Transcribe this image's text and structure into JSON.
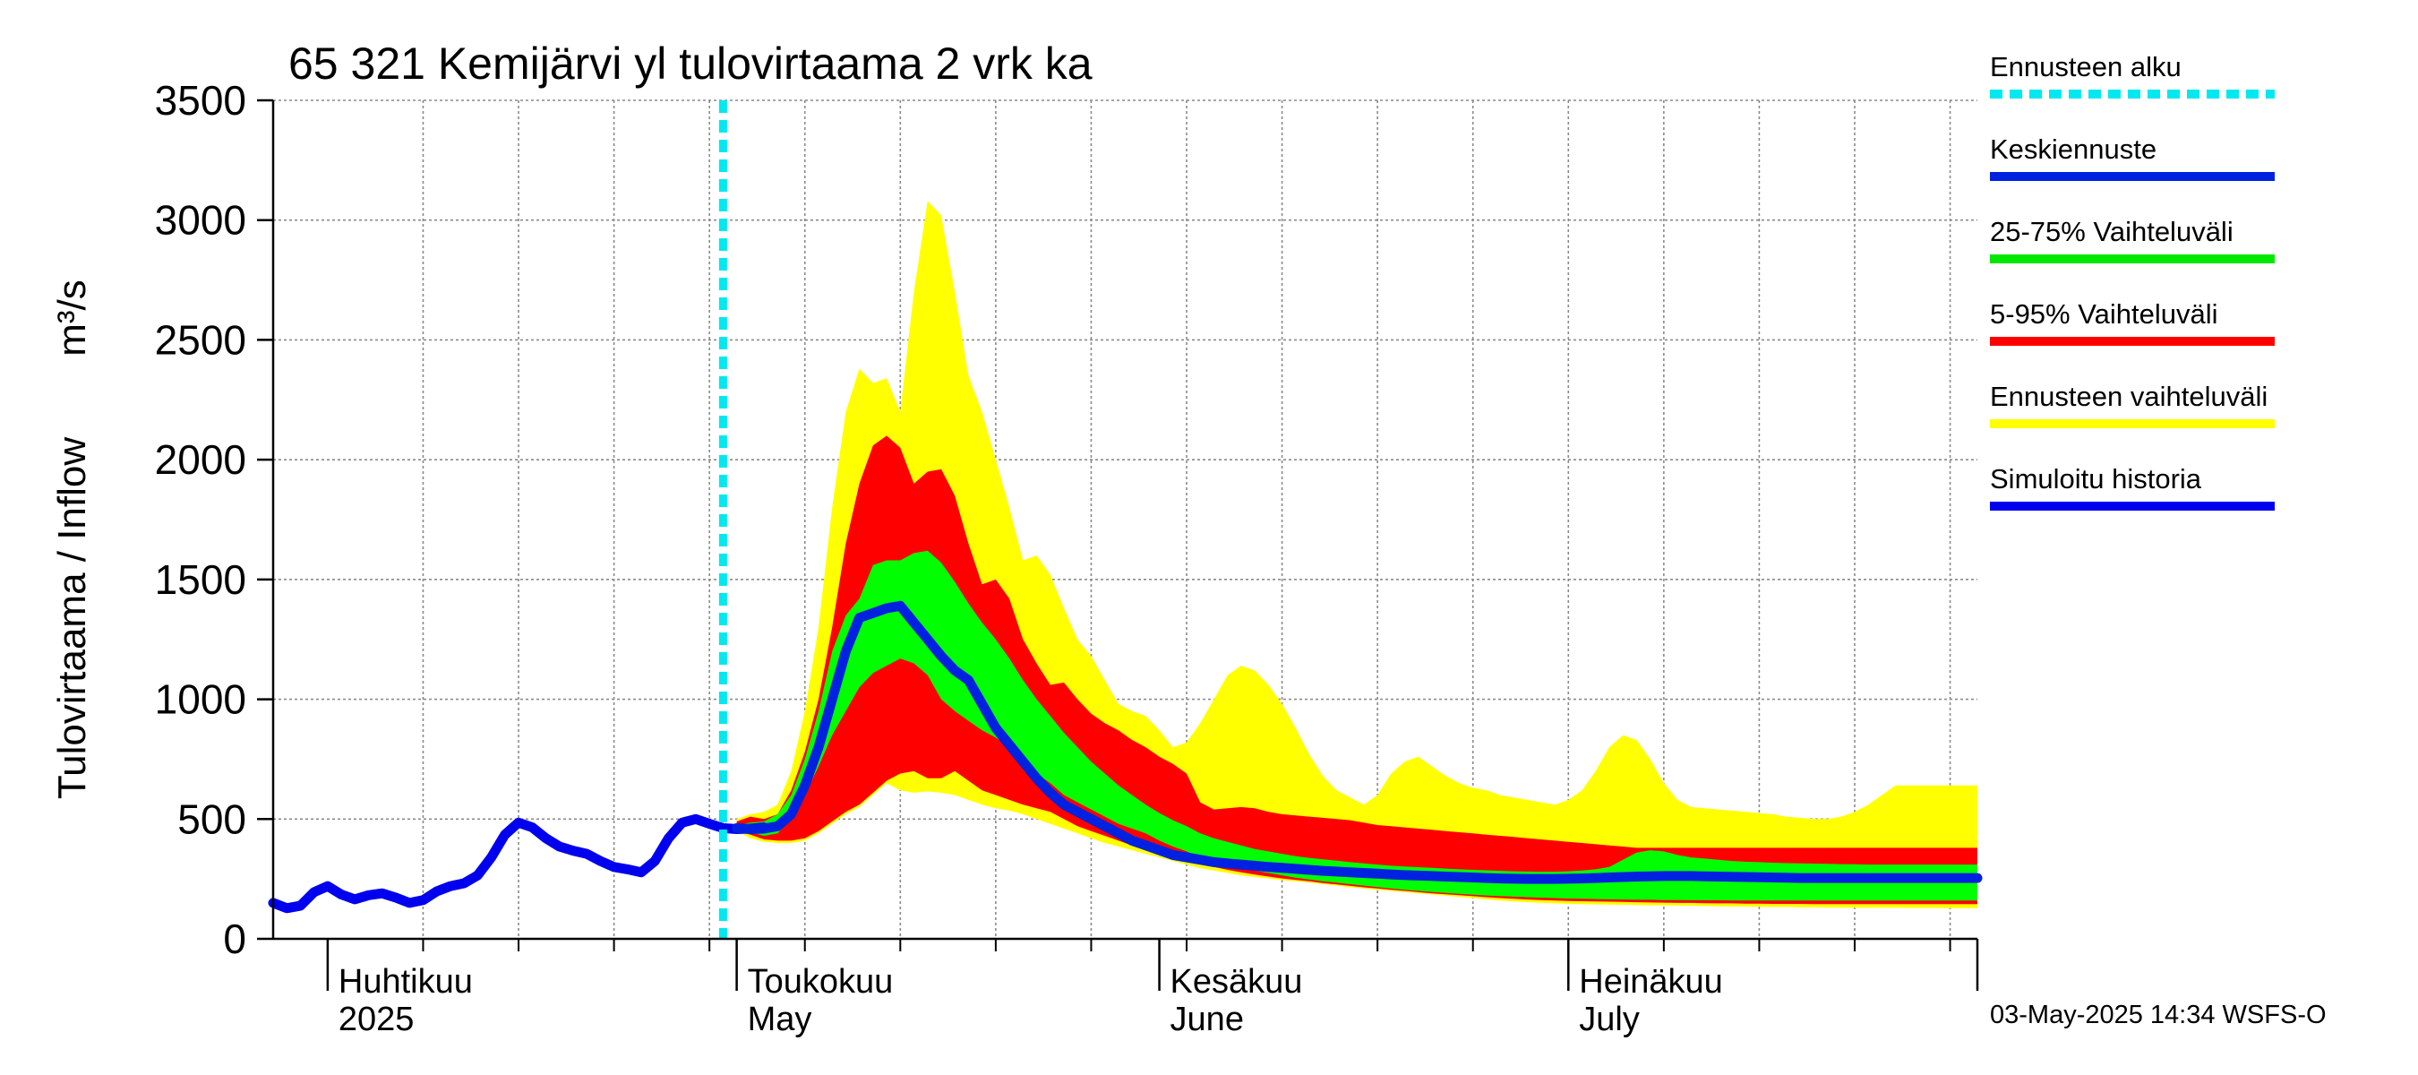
{
  "chart_data": {
    "type": "area",
    "title": "65 321 Kemijärvi yl tulovirtaama 2 vrk ka",
    "ylabel": "Tulovirtaama / Inflow",
    "ylabel_unit": "m³/s",
    "ylim": [
      0,
      3500
    ],
    "yticks": [
      0,
      500,
      1000,
      1500,
      2000,
      2500,
      3000,
      3500
    ],
    "xlim": [
      "2025-03-28",
      "2025-07-31"
    ],
    "grid": true,
    "month_labels": [
      {
        "fi": "Huhtikuu",
        "en": "2025",
        "date": "2025-04-01"
      },
      {
        "fi": "Toukokuu",
        "en": "May",
        "date": "2025-05-01"
      },
      {
        "fi": "Kesäkuu",
        "en": "June",
        "date": "2025-06-01"
      },
      {
        "fi": "Heinäkuu",
        "en": "July",
        "date": "2025-07-01"
      }
    ],
    "forecast_start": "2025-04-30",
    "history": {
      "name": "Simuloitu historia",
      "x": [
        0,
        1,
        2,
        3,
        4,
        5,
        6,
        7,
        8,
        9,
        10,
        11,
        12,
        13,
        14,
        15,
        16,
        17,
        18,
        19,
        20,
        21,
        22,
        23,
        24,
        25,
        26,
        27,
        28,
        29,
        30,
        31,
        32,
        33,
        34,
        35,
        36
      ],
      "values": [
        150,
        128,
        138,
        195,
        220,
        185,
        165,
        182,
        190,
        172,
        150,
        162,
        198,
        220,
        232,
        265,
        340,
        435,
        485,
        465,
        420,
        385,
        368,
        355,
        325,
        300,
        290,
        278,
        325,
        420,
        485,
        500,
        480,
        462,
        458,
        460,
        465
      ]
    },
    "forecast_x": [
      34,
      35,
      36,
      37,
      38,
      39,
      40,
      41,
      42,
      43,
      44,
      45,
      46,
      47,
      48,
      49,
      50,
      51,
      52,
      53,
      54,
      55,
      56,
      57,
      58,
      59,
      60,
      61,
      62,
      63,
      64,
      65,
      66,
      67,
      68,
      69,
      70,
      71,
      72,
      73,
      74,
      75,
      76,
      77,
      78,
      79,
      80,
      81,
      82,
      83,
      84,
      85,
      86,
      87,
      88,
      89,
      90,
      91,
      92,
      93,
      94,
      95,
      96,
      97,
      98,
      99,
      100,
      101,
      102,
      103,
      104,
      105,
      106,
      107,
      108,
      109,
      110,
      111,
      112,
      113,
      114,
      115,
      116,
      117,
      118,
      119,
      120,
      121,
      122,
      123,
      124,
      125
    ],
    "series": [
      {
        "name": "Ennusteen vaihteluväli",
        "color": "#ffff00",
        "lower": [
          450,
          420,
          405,
          400,
          400,
          410,
          440,
          480,
          520,
          550,
          600,
          650,
          620,
          610,
          615,
          610,
          600,
          580,
          560,
          545,
          535,
          520,
          500,
          480,
          460,
          440,
          420,
          400,
          385,
          370,
          355,
          340,
          325,
          310,
          295,
          285,
          275,
          265,
          258,
          252,
          245,
          240,
          235,
          228,
          222,
          215,
          210,
          205,
          200,
          195,
          190,
          185,
          180,
          175,
          170,
          165,
          160,
          156,
          153,
          150,
          148,
          146,
          145,
          144,
          143,
          142,
          141,
          140,
          140,
          139,
          138,
          137,
          136,
          135,
          135,
          134,
          133,
          133,
          132,
          132,
          131,
          131,
          130,
          130,
          130,
          130,
          129,
          129,
          129,
          128,
          128,
          128
        ],
        "upper": [
          500,
          520,
          530,
          560,
          700,
          950,
          1300,
          1800,
          2200,
          2380,
          2320,
          2340,
          2200,
          2700,
          3080,
          3020,
          2700,
          2350,
          2200,
          2000,
          1800,
          1580,
          1600,
          1520,
          1380,
          1250,
          1180,
          1080,
          980,
          950,
          930,
          870,
          800,
          820,
          900,
          1000,
          1100,
          1140,
          1120,
          1060,
          980,
          880,
          770,
          680,
          620,
          590,
          560,
          600,
          690,
          740,
          760,
          720,
          680,
          650,
          630,
          620,
          600,
          590,
          580,
          570,
          560,
          580,
          620,
          700,
          800,
          850,
          830,
          750,
          650,
          580,
          550,
          545,
          540,
          535,
          530,
          525,
          520,
          510,
          505,
          500,
          500,
          510,
          530,
          560,
          600,
          640,
          640,
          640,
          640,
          640,
          640,
          640
        ]
      },
      {
        "name": "5-95% Vaihteluväli",
        "color": "#ff0000",
        "lower": [
          450,
          435,
          415,
          410,
          410,
          420,
          450,
          490,
          530,
          560,
          610,
          660,
          690,
          700,
          670,
          670,
          700,
          660,
          620,
          600,
          580,
          560,
          545,
          530,
          500,
          470,
          450,
          430,
          410,
          390,
          375,
          360,
          345,
          330,
          315,
          300,
          288,
          278,
          268,
          260,
          252,
          246,
          240,
          233,
          227,
          221,
          215,
          210,
          205,
          200,
          195,
          190,
          186,
          182,
          178,
          174,
          170,
          167,
          164,
          162,
          160,
          158,
          157,
          156,
          155,
          154,
          153,
          152,
          151,
          150,
          150,
          149,
          148,
          148,
          147,
          147,
          146,
          146,
          146,
          145,
          145,
          145,
          145,
          145,
          145,
          145,
          145,
          145,
          145,
          145,
          145,
          145
        ],
        "upper": [
          490,
          510,
          500,
          520,
          620,
          780,
          1000,
          1300,
          1650,
          1900,
          2060,
          2100,
          2050,
          1900,
          1950,
          1960,
          1850,
          1650,
          1480,
          1500,
          1420,
          1250,
          1150,
          1060,
          1070,
          1000,
          940,
          900,
          870,
          830,
          800,
          760,
          730,
          690,
          570,
          540,
          545,
          550,
          545,
          530,
          520,
          515,
          510,
          505,
          500,
          495,
          485,
          475,
          470,
          465,
          460,
          455,
          450,
          445,
          440,
          435,
          430,
          425,
          420,
          415,
          410,
          405,
          400,
          395,
          390,
          385,
          380,
          380,
          380,
          380,
          380,
          380,
          380,
          380,
          380,
          380,
          380,
          380,
          380,
          380,
          380,
          380,
          380,
          380,
          380,
          380,
          380,
          380,
          380,
          380,
          380,
          380
        ]
      },
      {
        "name": "25-75% Vaihteluväli",
        "color": "#00ff00",
        "lower": [
          455,
          445,
          430,
          440,
          500,
          600,
          720,
          850,
          950,
          1050,
          1110,
          1140,
          1170,
          1150,
          1100,
          1000,
          950,
          910,
          870,
          840,
          800,
          740,
          690,
          650,
          600,
          570,
          540,
          510,
          480,
          460,
          440,
          410,
          385,
          365,
          340,
          325,
          310,
          295,
          285,
          275,
          265,
          255,
          248,
          240,
          235,
          228,
          222,
          216,
          210,
          205,
          200,
          196,
          192,
          188,
          184,
          181,
          178,
          176,
          174,
          172,
          170,
          168,
          167,
          166,
          165,
          164,
          163,
          163,
          162,
          162,
          161,
          161,
          161,
          160,
          160,
          160,
          160,
          160,
          160,
          160,
          160,
          160,
          160,
          160,
          160,
          160,
          160,
          160,
          160,
          160,
          160,
          160
        ],
        "upper": [
          475,
          485,
          490,
          520,
          600,
          750,
          950,
          1200,
          1350,
          1420,
          1560,
          1580,
          1580,
          1610,
          1620,
          1570,
          1490,
          1400,
          1320,
          1250,
          1170,
          1080,
          1000,
          930,
          860,
          800,
          740,
          690,
          640,
          600,
          560,
          525,
          495,
          470,
          440,
          420,
          405,
          390,
          375,
          365,
          355,
          345,
          338,
          332,
          326,
          320,
          315,
          310,
          305,
          302,
          299,
          296,
          293,
          290,
          288,
          286,
          284,
          282,
          281,
          280,
          280,
          282,
          285,
          290,
          300,
          330,
          360,
          370,
          365,
          350,
          340,
          335,
          330,
          325,
          322,
          320,
          318,
          316,
          315,
          314,
          313,
          312,
          311,
          310,
          310,
          310,
          310,
          310,
          310,
          310,
          310,
          310
        ]
      },
      {
        "name": "Keskiennuste",
        "color": "#0000ff",
        "values": [
          462,
          458,
          460,
          470,
          520,
          640,
          800,
          1000,
          1200,
          1340,
          1360,
          1380,
          1390,
          1320,
          1250,
          1180,
          1120,
          1080,
          980,
          880,
          810,
          740,
          670,
          610,
          560,
          530,
          500,
          470,
          440,
          410,
          390,
          370,
          350,
          340,
          330,
          320,
          315,
          310,
          305,
          300,
          296,
          292,
          288,
          284,
          281,
          278,
          275,
          272,
          269,
          266,
          264,
          262,
          260,
          258,
          256,
          254,
          252,
          251,
          250,
          250,
          250,
          251,
          252,
          254,
          256,
          258,
          260,
          261,
          262,
          262,
          262,
          261,
          260,
          259,
          258,
          257,
          256,
          255,
          254,
          254,
          254,
          254,
          254,
          254,
          254,
          254,
          254,
          254,
          254,
          254,
          254,
          254
        ]
      }
    ]
  },
  "legend": [
    {
      "label": "Ennusteen alku",
      "color": "#00e8f0",
      "style": "dashed"
    },
    {
      "label": "Keskiennuste",
      "color": "#0022e0",
      "style": "solid"
    },
    {
      "label": "25-75% Vaihteluväli",
      "color": "#00e800",
      "style": "solid"
    },
    {
      "label": "5-95% Vaihteluväli",
      "color": "#ff0000",
      "style": "solid"
    },
    {
      "label": "Ennusteen vaihteluväli",
      "color": "#ffff00",
      "style": "solid"
    },
    {
      "label": "Simuloitu historia",
      "color": "#0000ee",
      "style": "solid"
    }
  ],
  "footer": "03-May-2025 14:34 WSFS-O"
}
